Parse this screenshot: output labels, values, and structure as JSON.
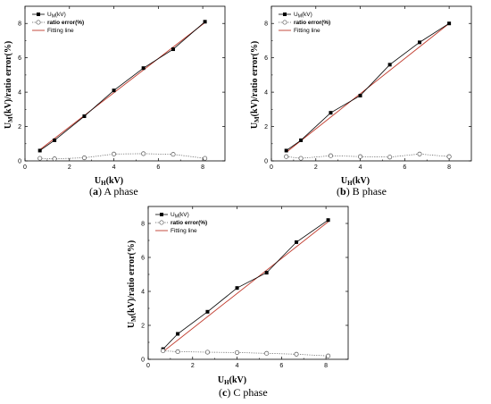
{
  "chart_data": [
    {
      "type": "line",
      "caption_letter": "a",
      "caption_text": " A phase",
      "xlabel_main": "U",
      "xlabel_sub": "H",
      "xlabel_unit": "(kV)",
      "ylabel_main": "U",
      "ylabel_sub": "M",
      "ylabel_rest": "(kV)/ratio error(%)",
      "xlim": [
        0,
        9
      ],
      "ylim": [
        0,
        9
      ],
      "xticks": [
        0,
        2,
        4,
        6,
        8
      ],
      "yticks": [
        0,
        2,
        4,
        6,
        8
      ],
      "legend": {
        "position": "top-left",
        "entries": [
          {
            "main": "U",
            "sub": "M",
            "rest": "(kV)"
          },
          {
            "main": "ratio error(%)",
            "sub": "",
            "rest": ""
          },
          {
            "main": "Fitting line",
            "sub": "",
            "rest": ""
          }
        ]
      },
      "series": [
        {
          "x": [
            0.67,
            1.33,
            2.67,
            4.0,
            5.33,
            6.67,
            8.1
          ],
          "values": [
            0.6,
            1.2,
            2.6,
            4.1,
            5.4,
            6.5,
            8.1
          ]
        },
        {
          "x": [
            0.67,
            1.33,
            2.67,
            4.0,
            5.33,
            6.67,
            8.1
          ],
          "values": [
            0.15,
            0.12,
            0.18,
            0.4,
            0.42,
            0.38,
            0.15
          ]
        },
        {
          "x": [
            0.67,
            8.1
          ],
          "values": [
            0.65,
            8.05
          ]
        }
      ]
    },
    {
      "type": "line",
      "caption_letter": "b",
      "caption_text": " B phase",
      "xlabel_main": "U",
      "xlabel_sub": "H",
      "xlabel_unit": "(kV)",
      "ylabel_main": "U",
      "ylabel_sub": "M",
      "ylabel_rest": "(kV)/ratio error(%)",
      "xlim": [
        0,
        9
      ],
      "ylim": [
        0,
        9
      ],
      "xticks": [
        0,
        2,
        4,
        6,
        8
      ],
      "yticks": [
        0,
        2,
        4,
        6,
        8
      ],
      "legend": {
        "position": "top-left",
        "entries": [
          {
            "main": "U",
            "sub": "M",
            "rest": "(kV)"
          },
          {
            "main": "ratio error(%)",
            "sub": "",
            "rest": ""
          },
          {
            "main": "Fitting line",
            "sub": "",
            "rest": ""
          }
        ]
      },
      "series": [
        {
          "x": [
            0.67,
            1.33,
            2.67,
            4.0,
            5.33,
            6.67,
            8.0
          ],
          "values": [
            0.6,
            1.2,
            2.8,
            3.8,
            5.6,
            6.9,
            8.0
          ]
        },
        {
          "x": [
            0.67,
            1.33,
            2.67,
            4.0,
            5.33,
            6.67,
            8.0
          ],
          "values": [
            0.25,
            0.15,
            0.3,
            0.25,
            0.22,
            0.4,
            0.25
          ]
        },
        {
          "x": [
            0.67,
            8.0
          ],
          "values": [
            0.5,
            8.0
          ]
        }
      ]
    },
    {
      "type": "line",
      "caption_letter": "c",
      "caption_text": " C phase",
      "xlabel_main": "U",
      "xlabel_sub": "H",
      "xlabel_unit": "(kV)",
      "ylabel_main": "U",
      "ylabel_sub": "M",
      "ylabel_rest": "(kV)/ratio error(%)",
      "xlim": [
        0,
        9
      ],
      "ylim": [
        0,
        9
      ],
      "xticks": [
        0,
        2,
        4,
        6,
        8
      ],
      "yticks": [
        0,
        2,
        4,
        6,
        8
      ],
      "legend": {
        "position": "top-left",
        "entries": [
          {
            "main": "U",
            "sub": "M",
            "rest": "(kV)"
          },
          {
            "main": "ratio error(%)",
            "sub": "",
            "rest": ""
          },
          {
            "main": "Fitting line",
            "sub": "",
            "rest": ""
          }
        ]
      },
      "series": [
        {
          "x": [
            0.67,
            1.33,
            2.67,
            4.0,
            5.33,
            6.67,
            8.1
          ],
          "values": [
            0.6,
            1.5,
            2.8,
            4.2,
            5.1,
            6.9,
            8.2
          ]
        },
        {
          "x": [
            0.67,
            1.33,
            2.67,
            4.0,
            5.33,
            6.67,
            8.1
          ],
          "values": [
            0.5,
            0.45,
            0.42,
            0.4,
            0.35,
            0.3,
            0.2
          ]
        },
        {
          "x": [
            0.67,
            8.1
          ],
          "values": [
            0.45,
            8.1
          ]
        }
      ]
    }
  ],
  "colors": {
    "measured": "#000000",
    "ratio": "#555555",
    "fit": "#c0392b"
  }
}
